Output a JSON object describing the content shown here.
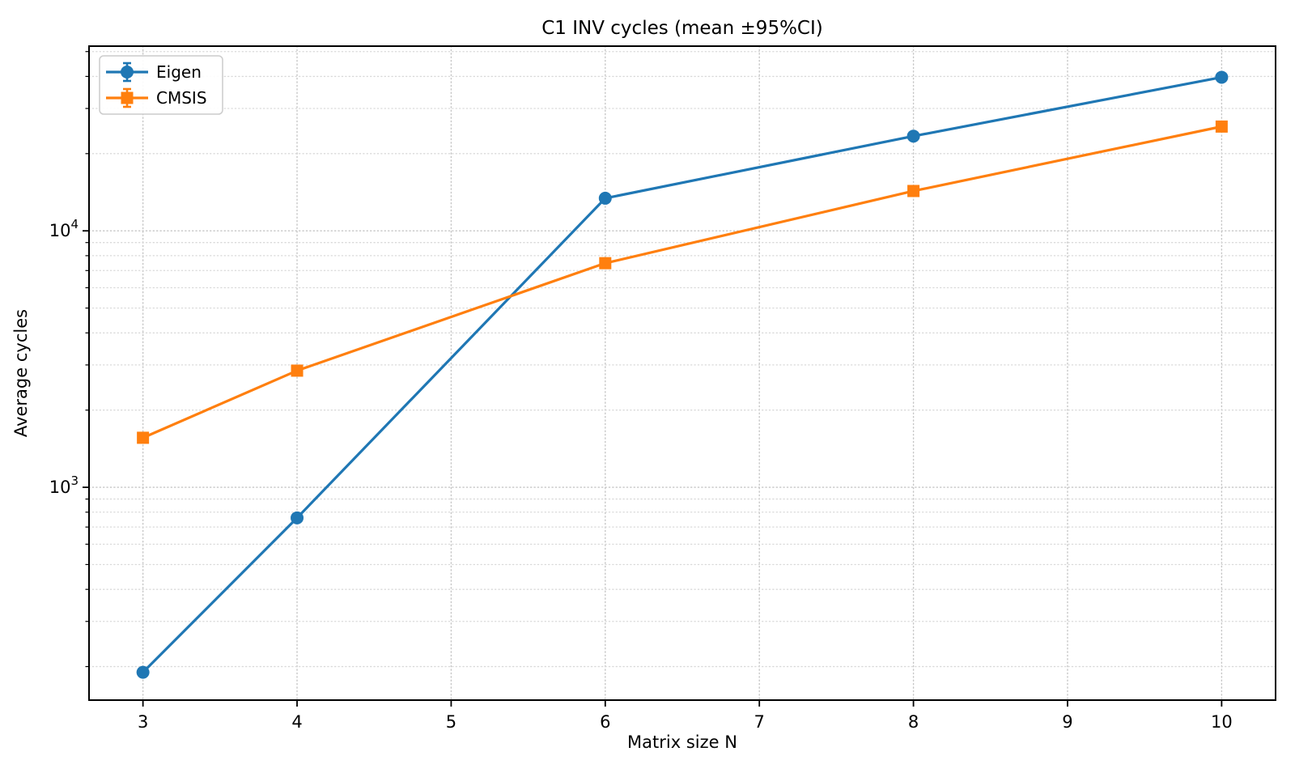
{
  "figure": {
    "background": "#ffffff",
    "axis_color": "#000000",
    "grid_major_color": "#c6c6c6",
    "grid_minor_color": "#d9d9d9"
  },
  "chart_data": {
    "type": "line",
    "title": "C1 INV cycles (mean ±95%CI)",
    "xlabel": "Matrix size N",
    "ylabel": "Average cycles",
    "x": [
      3,
      4,
      6,
      8,
      10
    ],
    "series": [
      {
        "name": "Eigen",
        "color": "#1f77b4",
        "marker": "circle",
        "values": [
          190,
          760,
          13400,
          23400,
          39700
        ]
      },
      {
        "name": "CMSIS",
        "color": "#ff7f0e",
        "marker": "square",
        "values": [
          1560,
          2850,
          7480,
          14300,
          25500
        ]
      }
    ],
    "x_ticks": [
      3,
      4,
      5,
      6,
      7,
      8,
      9,
      10
    ],
    "y_scale": "log",
    "y_major_ticks": [
      1000,
      10000
    ],
    "y_tick_labels": [
      "10^3",
      "10^4"
    ],
    "xlim": [
      2.65,
      10.35
    ],
    "ylim": [
      148,
      52500
    ],
    "grid": "both, dotted",
    "legend_position": "upper left",
    "legend_style": "errorbar handles with caps"
  }
}
